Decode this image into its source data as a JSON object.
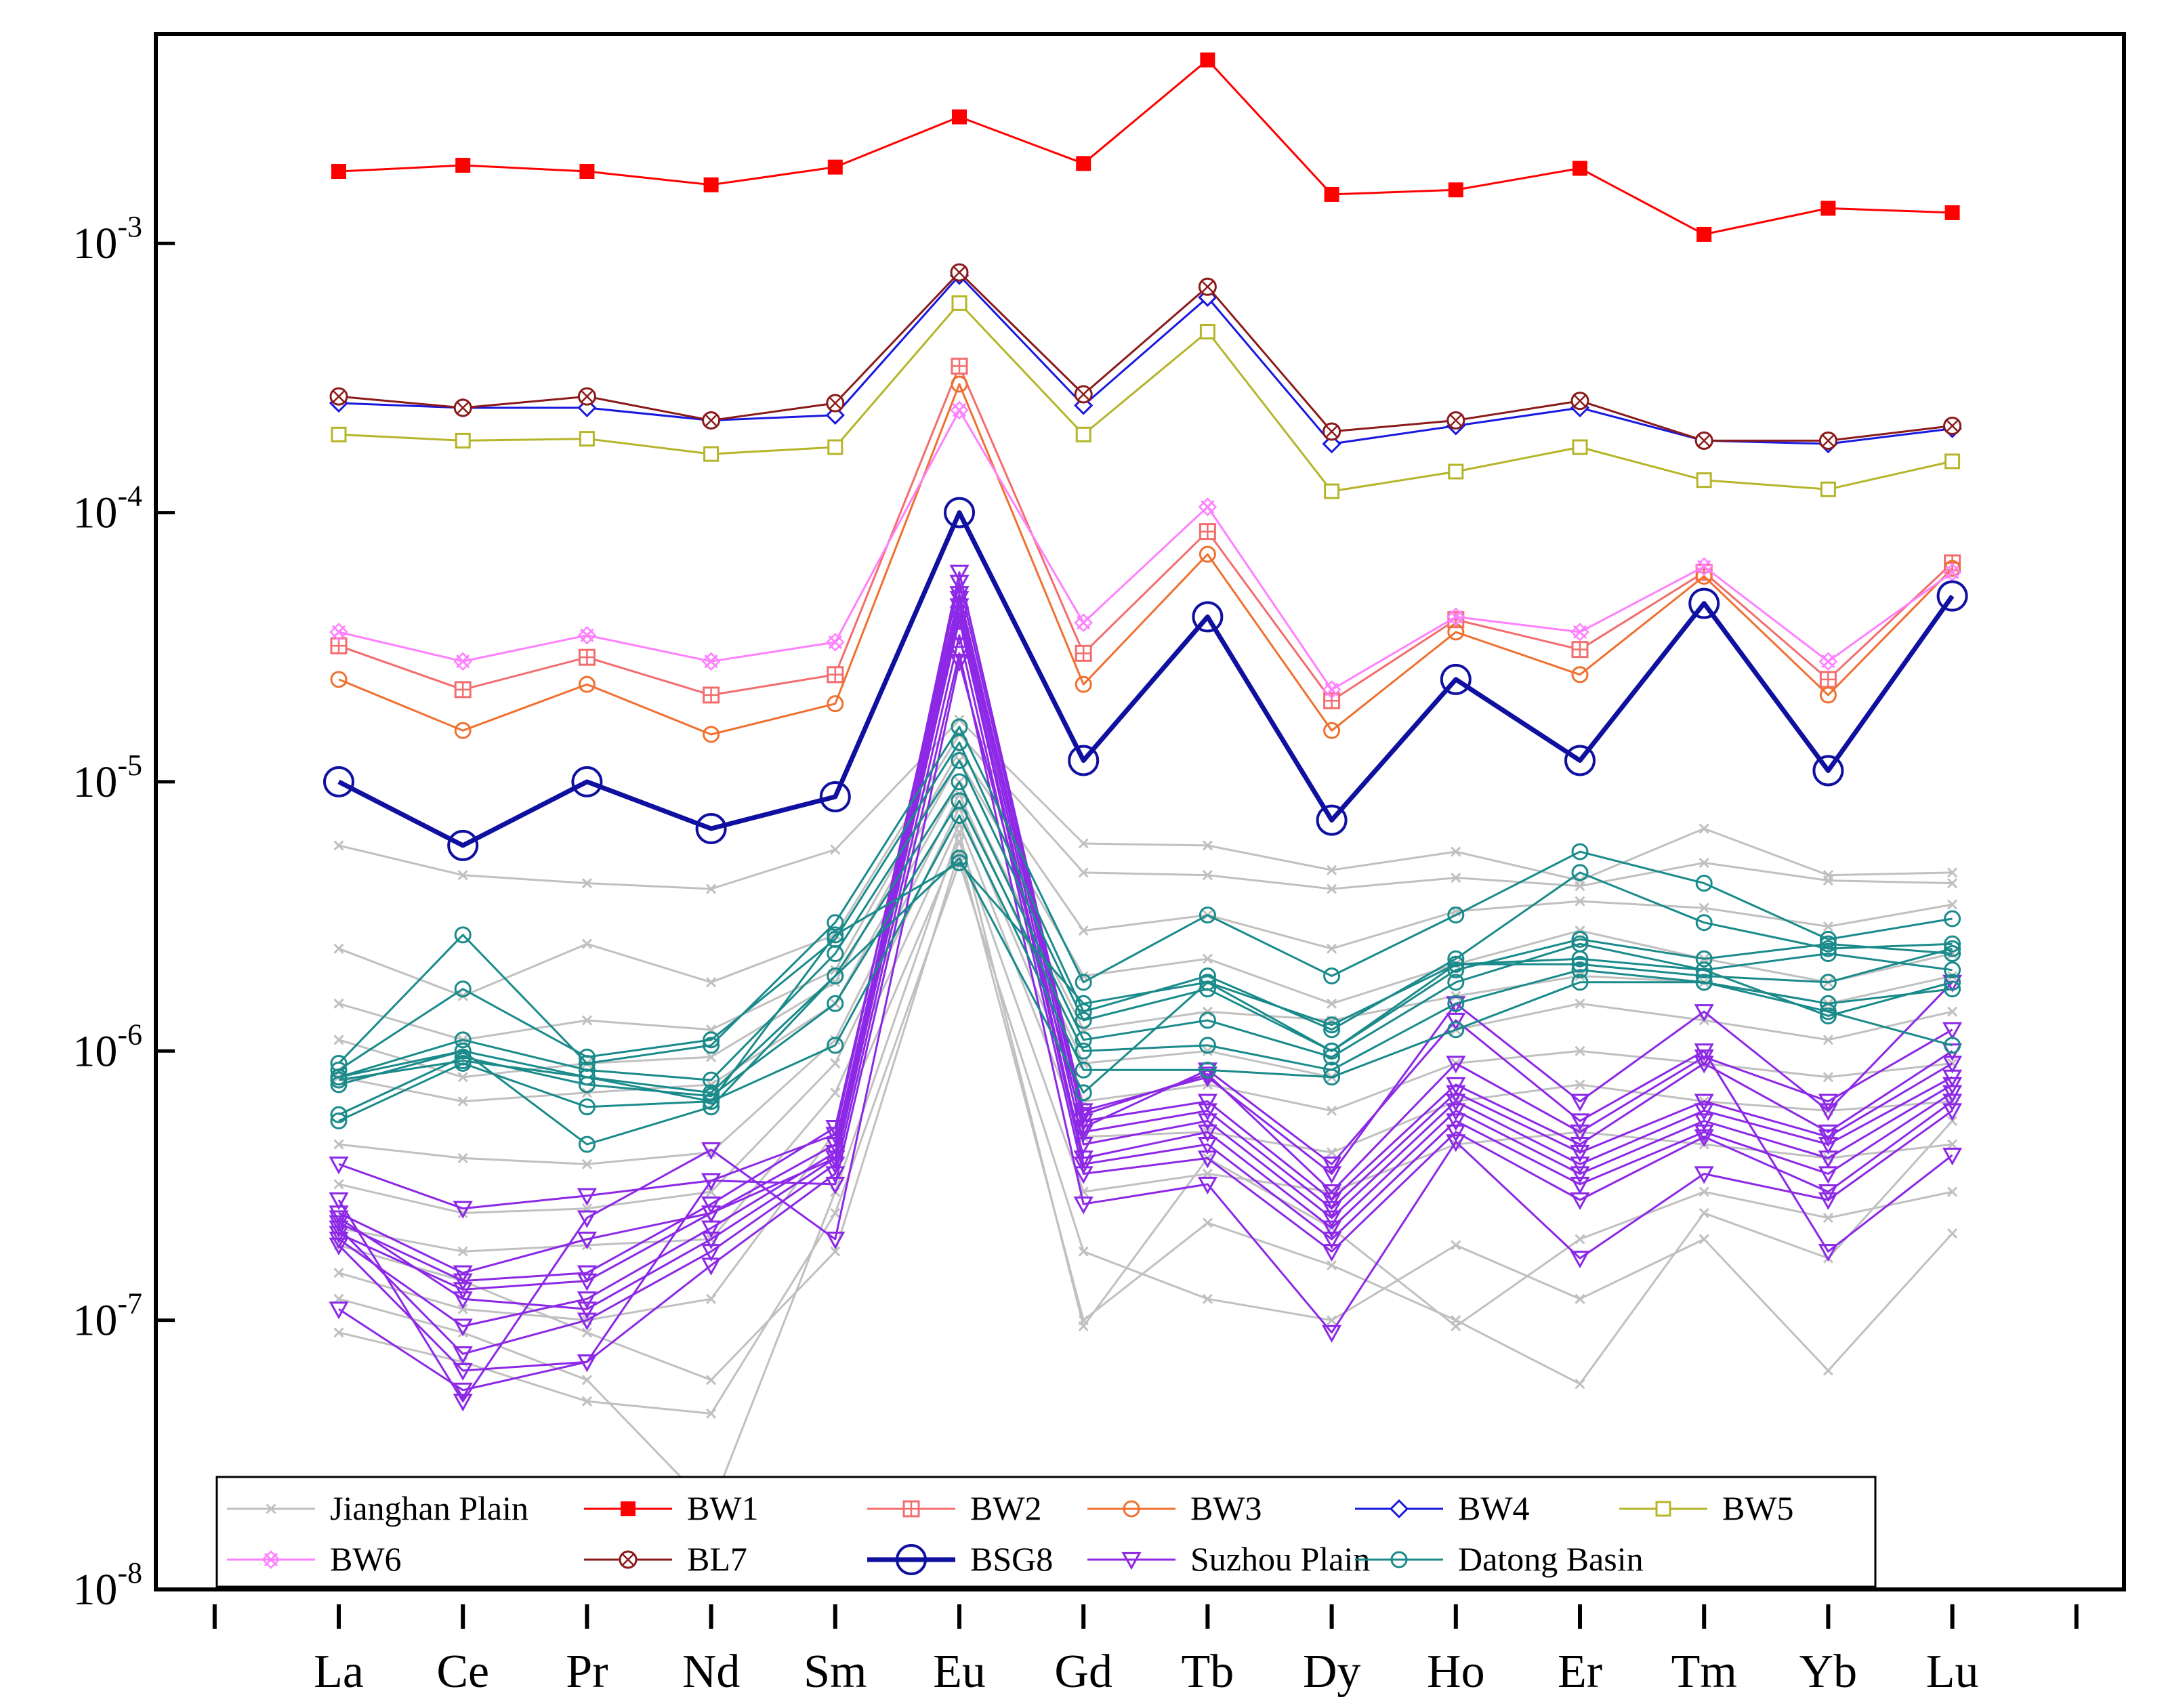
{
  "chart_data": {
    "type": "line",
    "title": "",
    "xlabel": "",
    "ylabel": "",
    "y_scale": "log",
    "ylim": [
      1e-08,
      0.006
    ],
    "categories": [
      "La",
      "Ce",
      "Pr",
      "Nd",
      "Sm",
      "Eu",
      "Gd",
      "Tb",
      "Dy",
      "Ho",
      "Er",
      "Tm",
      "Yb",
      "Lu"
    ],
    "y_ticks": [
      {
        "base": "10",
        "exp": "-8",
        "value": 1e-08
      },
      {
        "base": "10",
        "exp": "-7",
        "value": 1e-07
      },
      {
        "base": "10",
        "exp": "-6",
        "value": 1e-06
      },
      {
        "base": "10",
        "exp": "-5",
        "value": 1e-05
      },
      {
        "base": "10",
        "exp": "-4",
        "value": 0.0001
      },
      {
        "base": "10",
        "exp": "-3",
        "value": 0.001
      }
    ],
    "legend_position": "bottom",
    "groups": [
      {
        "name": "Jianghan Plain",
        "color": "#c0c0c0",
        "marker": "cross",
        "width": 3,
        "marker_size": 13,
        "series": [
          [
            5.8e-06,
            4.5e-06,
            4.2e-06,
            4e-06,
            5.6e-06,
            1.7e-05,
            5.9e-06,
            5.8e-06,
            4.7e-06,
            5.5e-06,
            4.3e-06,
            6.7e-06,
            4.5e-06,
            4.6e-06
          ],
          [
            2.4e-06,
            1.6e-06,
            2.5e-06,
            1.8e-06,
            2.7e-06,
            1.5e-05,
            4.6e-06,
            4.5e-06,
            4e-06,
            4.4e-06,
            4.1e-06,
            5e-06,
            4.3e-06,
            4.2e-06
          ],
          [
            1.5e-06,
            1.1e-06,
            1.3e-06,
            1.2e-06,
            2e-06,
            1.3e-05,
            2.8e-06,
            3.2e-06,
            2.4e-06,
            3.3e-06,
            3.6e-06,
            3.4e-06,
            2.9e-06,
            3.5e-06
          ],
          [
            1.1e-06,
            8e-07,
            9e-07,
            9.5e-07,
            1.8e-06,
            1.2e-05,
            1.9e-06,
            2.2e-06,
            1.5e-06,
            2.1e-06,
            2.8e-06,
            2.2e-06,
            1.8e-06,
            2.3e-06
          ],
          [
            8e-07,
            6.5e-07,
            7e-07,
            7.5e-07,
            1.5e-06,
            1e-05,
            1.2e-06,
            1.4e-06,
            1.3e-06,
            1.6e-06,
            1.9e-06,
            1.8e-06,
            1.5e-06,
            1.9e-06
          ],
          [
            4.5e-07,
            4e-07,
            3.8e-07,
            4.2e-07,
            1.1e-06,
            9e-06,
            9e-07,
            1e-06,
            8e-07,
            1.2e-06,
            1.5e-06,
            1.3e-06,
            1.1e-06,
            1.4e-06
          ],
          [
            3.2e-07,
            2.5e-07,
            2.6e-07,
            3e-07,
            9e-07,
            8e-06,
            6.5e-07,
            7.5e-07,
            6e-07,
            9e-07,
            1e-06,
            9e-07,
            8e-07,
            9e-07
          ],
          [
            2.2e-07,
            1.8e-07,
            1.9e-07,
            2e-07,
            7e-07,
            7e-06,
            4.8e-07,
            5e-07,
            4.2e-07,
            6.5e-07,
            7.5e-07,
            6.5e-07,
            6e-07,
            6.5e-07
          ],
          [
            1.5e-07,
            1.1e-07,
            1e-07,
            1.2e-07,
            5e-07,
            6e-06,
            3e-07,
            3.5e-07,
            3e-07,
            4.5e-07,
            5e-07,
            4.5e-07,
            4e-07,
            4.5e-07
          ],
          [
            9e-08,
            7e-08,
            5e-08,
            4.5e-08,
            2.5e-07,
            5e-06,
            1.8e-07,
            1.2e-07,
            1e-07,
            1.9e-07,
            1.2e-07,
            2e-07,
            6.5e-08,
            2.1e-07
          ],
          [
            1.9e-07,
            1.4e-07,
            9e-08,
            6e-08,
            1.8e-07,
            5.5e-06,
            1e-07,
            2.3e-07,
            1.6e-07,
            1e-07,
            5.8e-08,
            2.5e-07,
            1.7e-07,
            5.5e-07
          ],
          [
            1.2e-07,
            9e-08,
            6e-08,
            2e-08,
            3e-07,
            6.5e-06,
            9.5e-08,
            4e-07,
            2.2e-07,
            9.5e-08,
            2e-07,
            3e-07,
            2.4e-07,
            3e-07
          ]
        ]
      },
      {
        "name": "BW1",
        "color": "#ff0000",
        "marker": "square-filled",
        "width": 3,
        "marker_size": 20,
        "series": [
          [
            0.00185,
            0.00195,
            0.00185,
            0.00165,
            0.00192,
            0.00295,
            0.00198,
            0.0048,
            0.00152,
            0.00158,
            0.0019,
            0.00108,
            0.00135,
            0.0013
          ]
        ]
      },
      {
        "name": "BW2",
        "color": "#f26d6d",
        "marker": "square-plus",
        "width": 3,
        "marker_size": 22,
        "series": [
          [
            3.2e-05,
            2.2e-05,
            2.9e-05,
            2.1e-05,
            2.5e-05,
            0.00035,
            3e-05,
            8.5e-05,
            2e-05,
            4e-05,
            3.1e-05,
            6e-05,
            2.4e-05,
            6.5e-05
          ]
        ]
      },
      {
        "name": "BW3",
        "color": "#f07030",
        "marker": "circle-open",
        "width": 3,
        "marker_size": 22,
        "series": [
          [
            2.4e-05,
            1.55e-05,
            2.3e-05,
            1.5e-05,
            1.95e-05,
            0.0003,
            2.3e-05,
            7e-05,
            1.55e-05,
            3.6e-05,
            2.5e-05,
            5.8e-05,
            2.1e-05,
            6.2e-05
          ]
        ]
      },
      {
        "name": "BW4",
        "color": "#1818e0",
        "marker": "diamond-open",
        "width": 3,
        "marker_size": 24,
        "series": [
          [
            0.000255,
            0.000245,
            0.000245,
            0.00022,
            0.00023,
            0.00076,
            0.00025,
            0.00063,
            0.00018,
            0.00021,
            0.000245,
            0.000185,
            0.00018,
            0.000205
          ]
        ]
      },
      {
        "name": "BW5",
        "color": "#b5b52a",
        "marker": "square-open",
        "width": 3,
        "marker_size": 20,
        "series": [
          [
            0.000195,
            0.000185,
            0.000188,
            0.000165,
            0.000175,
            0.0006,
            0.000195,
            0.00047,
            0.00012,
            0.000142,
            0.000175,
            0.000132,
            0.000122,
            0.000155
          ]
        ]
      },
      {
        "name": "BW6",
        "color": "#ff80ff",
        "marker": "x-diamond",
        "width": 3,
        "marker_size": 24,
        "series": [
          [
            3.6e-05,
            2.8e-05,
            3.5e-05,
            2.8e-05,
            3.3e-05,
            0.00024,
            3.9e-05,
            0.000105,
            2.2e-05,
            4.1e-05,
            3.6e-05,
            6.3e-05,
            2.8e-05,
            6e-05
          ]
        ]
      },
      {
        "name": "BL7",
        "color": "#8b1a1a",
        "marker": "circle-x",
        "width": 3,
        "marker_size": 24,
        "series": [
          [
            0.00027,
            0.000245,
            0.00027,
            0.00022,
            0.000255,
            0.00078,
            0.000275,
            0.00069,
            0.0002,
            0.00022,
            0.00026,
            0.000185,
            0.000185,
            0.00021
          ]
        ]
      },
      {
        "name": "BSG8",
        "color": "#1010a0",
        "marker": "circle-open",
        "width": 7,
        "marker_size": 42,
        "series": [
          [
            1e-05,
            5.8e-06,
            1e-05,
            6.7e-06,
            8.8e-06,
            0.0001,
            1.2e-05,
            4.1e-05,
            7.2e-06,
            2.4e-05,
            1.2e-05,
            4.6e-05,
            1.1e-05,
            4.9e-05
          ]
        ]
      },
      {
        "name": "Suzhou Plain",
        "color": "#8c28e6",
        "marker": "triangle-down-open",
        "width": 3,
        "marker_size": 24,
        "series": [
          [
            2.5e-07,
            1.5e-07,
            2e-07,
            2.5e-07,
            4e-07,
            6e-05,
            6e-07,
            8e-07,
            3.5e-07,
            1.5e-06,
            6.5e-07,
            1.4e-06,
            6e-07,
            1.8e-06
          ],
          [
            3.8e-07,
            2.6e-07,
            2.9e-07,
            3.3e-07,
            4.9e-07,
            5.5e-05,
            5.8e-07,
            8.2e-07,
            3e-07,
            9e-07,
            5e-07,
            9.5e-07,
            6.5e-07,
            1.2e-06
          ],
          [
            2.3e-07,
            1.4e-07,
            1.5e-07,
            2.7e-07,
            5.2e-07,
            5e-05,
            5.5e-07,
            6.5e-07,
            2.8e-07,
            7.5e-07,
            4.5e-07,
            9e-07,
            5e-07,
            1e-06
          ],
          [
            2.1e-07,
            1.3e-07,
            1.4e-07,
            2.5e-07,
            4.5e-07,
            4.8e-05,
            5e-07,
            6e-07,
            2.6e-07,
            7e-07,
            4.2e-07,
            6.5e-07,
            4.8e-07,
            9e-07
          ],
          [
            2e-07,
            9.5e-08,
            1.2e-07,
            2.2e-07,
            4.2e-07,
            4.5e-05,
            4.5e-07,
            5.5e-07,
            2.4e-07,
            6.5e-07,
            3.8e-07,
            6e-07,
            4.5e-07,
            8e-07
          ],
          [
            2.4e-07,
            1.2e-07,
            1.1e-07,
            2e-07,
            4e-07,
            4.2e-05,
            4e-07,
            5e-07,
            2.2e-07,
            6e-07,
            3.5e-07,
            5.5e-07,
            4e-07,
            7.5e-07
          ],
          [
            2.2e-07,
            7.5e-08,
            1e-07,
            1.8e-07,
            3.8e-07,
            4e-05,
            3.8e-07,
            4.5e-07,
            2e-07,
            5.5e-07,
            3.2e-07,
            5e-07,
            3.5e-07,
            7e-07
          ],
          [
            1.9e-07,
            6.5e-08,
            7e-08,
            1.6e-07,
            3.5e-07,
            3.5e-05,
            3.5e-07,
            4e-07,
            1.8e-07,
            5e-07,
            2.8e-07,
            4.8e-07,
            3e-07,
            6.5e-07
          ],
          [
            1.1e-07,
            5.5e-08,
            7e-08,
            3.3e-07,
            3.2e-07,
            3e-05,
            2.7e-07,
            3.2e-07,
            9e-08,
            4.6e-07,
            1.7e-07,
            3.5e-07,
            2.8e-07,
            6e-07
          ],
          [
            2.8e-07,
            5e-08,
            2.4e-07,
            4.3e-07,
            2e-07,
            2.8e-05,
            5.2e-07,
            8.5e-07,
            3.8e-07,
            1.3e-06,
            5.5e-07,
            1e-06,
            1.8e-07,
            4.1e-07
          ]
        ]
      },
      {
        "name": "Datong Basin",
        "color": "#1a8a8a",
        "marker": "circle-open",
        "width": 3,
        "marker_size": 22,
        "series": [
          [
            9e-07,
            2.7e-06,
            9e-07,
            1.05e-06,
            3e-06,
            1.6e-05,
            1.8e-06,
            3.2e-06,
            1.9e-06,
            3.2e-06,
            5.5e-06,
            4.2e-06,
            2.6e-06,
            3.1e-06
          ],
          [
            8.5e-07,
            1.7e-06,
            9.5e-07,
            1.1e-06,
            2.6e-06,
            1.4e-05,
            1.4e-06,
            1.9e-06,
            1.2e-06,
            2.2e-06,
            4.6e-06,
            3e-06,
            2.4e-06,
            2.5e-06
          ],
          [
            8e-07,
            1.1e-06,
            8.5e-07,
            7.8e-07,
            2.3e-06,
            1.2e-05,
            1.3e-06,
            1.7e-06,
            1e-06,
            2e-06,
            2.6e-06,
            2.2e-06,
            2.5e-06,
            2.3e-06
          ],
          [
            7.5e-07,
            1e-06,
            8e-07,
            7e-07,
            1.9e-06,
            1e-05,
            1.1e-06,
            1.3e-06,
            9.5e-07,
            1.8e-06,
            2.5e-06,
            2e-06,
            2.3e-06,
            2e-06
          ],
          [
            5.8e-07,
            9.5e-07,
            7.5e-07,
            6.8e-07,
            1.5e-06,
            8.5e-06,
            1e-06,
            1.05e-06,
            8.5e-07,
            1.5e-06,
            2e-06,
            1.8e-06,
            1.5e-06,
            1.7e-06
          ],
          [
            5.5e-07,
            9e-07,
            6.2e-07,
            6.5e-07,
            1.05e-06,
            7.5e-06,
            8.5e-07,
            8.5e-07,
            8e-07,
            1.2e-06,
            1.8e-06,
            1.8e-06,
            1.4e-06,
            1.05e-06
          ],
          [
            8e-07,
            1e-06,
            4.5e-07,
            6.2e-07,
            1.9e-06,
            5.2e-06,
            7e-07,
            1.8e-06,
            1e-06,
            2.1e-06,
            2.1e-06,
            1.9e-06,
            1.8e-06,
            2.4e-06
          ],
          [
            7.8e-07,
            9.2e-07,
            8e-07,
            6.5e-07,
            2.7e-06,
            5e-06,
            1.5e-06,
            1.8e-06,
            1.25e-06,
            2.1e-06,
            2.2e-06,
            2e-06,
            1.35e-06,
            1.8e-06
          ]
        ]
      }
    ]
  }
}
